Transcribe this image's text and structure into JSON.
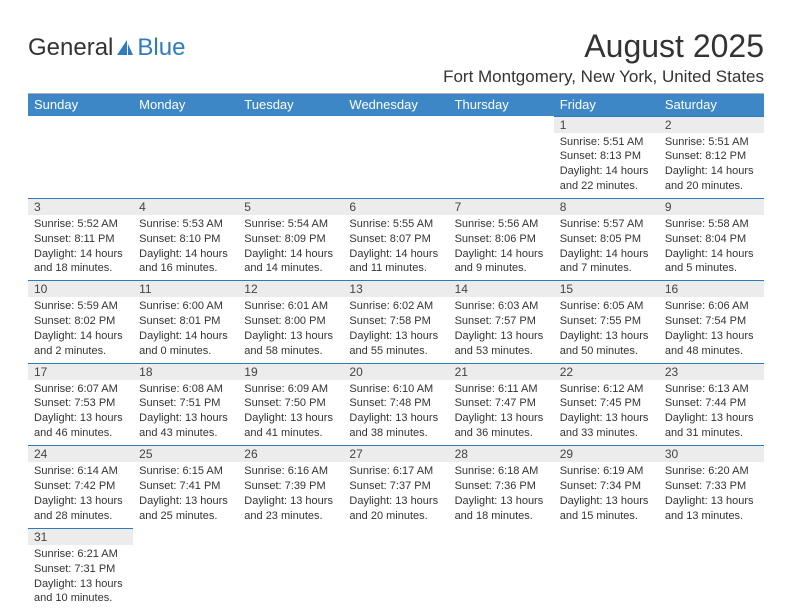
{
  "brand": {
    "general": "General",
    "blue": "Blue"
  },
  "title": "August 2025",
  "location": "Fort Montgomery, New York, United States",
  "colors": {
    "header_bg": "#3d87c7",
    "header_text": "#ffffff",
    "daynum_bg": "#ececec",
    "week_border": "#2f7bbf",
    "text": "#333333",
    "page_bg": "#ffffff"
  },
  "dow": [
    "Sunday",
    "Monday",
    "Tuesday",
    "Wednesday",
    "Thursday",
    "Friday",
    "Saturday"
  ],
  "weeks": [
    [
      null,
      null,
      null,
      null,
      null,
      {
        "n": "1",
        "sr": "5:51 AM",
        "ss": "8:13 PM",
        "dl": "14 hours and 22 minutes."
      },
      {
        "n": "2",
        "sr": "5:51 AM",
        "ss": "8:12 PM",
        "dl": "14 hours and 20 minutes."
      }
    ],
    [
      {
        "n": "3",
        "sr": "5:52 AM",
        "ss": "8:11 PM",
        "dl": "14 hours and 18 minutes."
      },
      {
        "n": "4",
        "sr": "5:53 AM",
        "ss": "8:10 PM",
        "dl": "14 hours and 16 minutes."
      },
      {
        "n": "5",
        "sr": "5:54 AM",
        "ss": "8:09 PM",
        "dl": "14 hours and 14 minutes."
      },
      {
        "n": "6",
        "sr": "5:55 AM",
        "ss": "8:07 PM",
        "dl": "14 hours and 11 minutes."
      },
      {
        "n": "7",
        "sr": "5:56 AM",
        "ss": "8:06 PM",
        "dl": "14 hours and 9 minutes."
      },
      {
        "n": "8",
        "sr": "5:57 AM",
        "ss": "8:05 PM",
        "dl": "14 hours and 7 minutes."
      },
      {
        "n": "9",
        "sr": "5:58 AM",
        "ss": "8:04 PM",
        "dl": "14 hours and 5 minutes."
      }
    ],
    [
      {
        "n": "10",
        "sr": "5:59 AM",
        "ss": "8:02 PM",
        "dl": "14 hours and 2 minutes."
      },
      {
        "n": "11",
        "sr": "6:00 AM",
        "ss": "8:01 PM",
        "dl": "14 hours and 0 minutes."
      },
      {
        "n": "12",
        "sr": "6:01 AM",
        "ss": "8:00 PM",
        "dl": "13 hours and 58 minutes."
      },
      {
        "n": "13",
        "sr": "6:02 AM",
        "ss": "7:58 PM",
        "dl": "13 hours and 55 minutes."
      },
      {
        "n": "14",
        "sr": "6:03 AM",
        "ss": "7:57 PM",
        "dl": "13 hours and 53 minutes."
      },
      {
        "n": "15",
        "sr": "6:05 AM",
        "ss": "7:55 PM",
        "dl": "13 hours and 50 minutes."
      },
      {
        "n": "16",
        "sr": "6:06 AM",
        "ss": "7:54 PM",
        "dl": "13 hours and 48 minutes."
      }
    ],
    [
      {
        "n": "17",
        "sr": "6:07 AM",
        "ss": "7:53 PM",
        "dl": "13 hours and 46 minutes."
      },
      {
        "n": "18",
        "sr": "6:08 AM",
        "ss": "7:51 PM",
        "dl": "13 hours and 43 minutes."
      },
      {
        "n": "19",
        "sr": "6:09 AM",
        "ss": "7:50 PM",
        "dl": "13 hours and 41 minutes."
      },
      {
        "n": "20",
        "sr": "6:10 AM",
        "ss": "7:48 PM",
        "dl": "13 hours and 38 minutes."
      },
      {
        "n": "21",
        "sr": "6:11 AM",
        "ss": "7:47 PM",
        "dl": "13 hours and 36 minutes."
      },
      {
        "n": "22",
        "sr": "6:12 AM",
        "ss": "7:45 PM",
        "dl": "13 hours and 33 minutes."
      },
      {
        "n": "23",
        "sr": "6:13 AM",
        "ss": "7:44 PM",
        "dl": "13 hours and 31 minutes."
      }
    ],
    [
      {
        "n": "24",
        "sr": "6:14 AM",
        "ss": "7:42 PM",
        "dl": "13 hours and 28 minutes."
      },
      {
        "n": "25",
        "sr": "6:15 AM",
        "ss": "7:41 PM",
        "dl": "13 hours and 25 minutes."
      },
      {
        "n": "26",
        "sr": "6:16 AM",
        "ss": "7:39 PM",
        "dl": "13 hours and 23 minutes."
      },
      {
        "n": "27",
        "sr": "6:17 AM",
        "ss": "7:37 PM",
        "dl": "13 hours and 20 minutes."
      },
      {
        "n": "28",
        "sr": "6:18 AM",
        "ss": "7:36 PM",
        "dl": "13 hours and 18 minutes."
      },
      {
        "n": "29",
        "sr": "6:19 AM",
        "ss": "7:34 PM",
        "dl": "13 hours and 15 minutes."
      },
      {
        "n": "30",
        "sr": "6:20 AM",
        "ss": "7:33 PM",
        "dl": "13 hours and 13 minutes."
      }
    ],
    [
      {
        "n": "31",
        "sr": "6:21 AM",
        "ss": "7:31 PM",
        "dl": "13 hours and 10 minutes."
      },
      null,
      null,
      null,
      null,
      null,
      null
    ]
  ],
  "labels": {
    "sunrise": "Sunrise: ",
    "sunset": "Sunset: ",
    "daylight": "Daylight: "
  }
}
